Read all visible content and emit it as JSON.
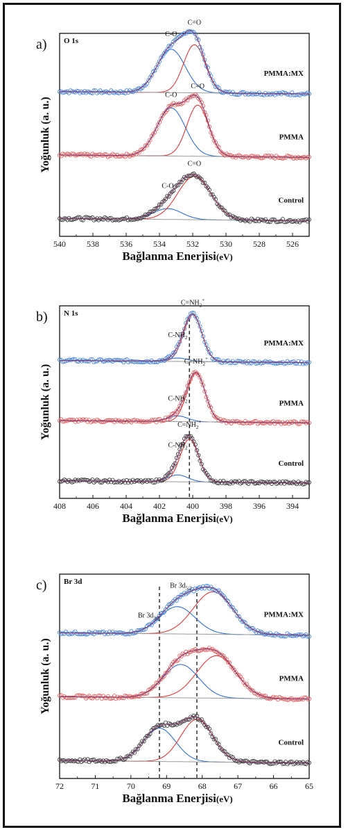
{
  "colors": {
    "blue": "#3f7fd9",
    "red": "#e05a5a",
    "black": "#333333",
    "fit_blue": "#2f6fcf",
    "fit_red": "#d93b3b",
    "envelope": "#9a9a9a"
  },
  "chart_data": [
    {
      "type": "line",
      "panel_label": "a)",
      "corner_label": "O 1s",
      "xlabel_main": "Bağlanma Enerjisi",
      "xlabel_unit": "(eV)",
      "ylabel": "Yoğunluk",
      "ylabel_unit": "(a. u.)",
      "xlim": [
        540,
        525
      ],
      "ticks": [
        "540",
        "538",
        "536",
        "534",
        "532",
        "530",
        "528",
        "526"
      ],
      "tick_values": [
        540,
        538,
        536,
        534,
        532,
        530,
        528,
        526
      ],
      "series": [
        {
          "name": "PMMA:MX",
          "peaks": [
            {
              "center": 533.3,
              "height": 0.72,
              "width": 0.85
            },
            {
              "center": 531.9,
              "height": 0.8,
              "width": 0.65
            }
          ],
          "offset": 2.0
        },
        {
          "name": "PMMA",
          "peaks": [
            {
              "center": 533.3,
              "height": 0.8,
              "width": 0.85
            },
            {
              "center": 531.7,
              "height": 0.85,
              "width": 0.65
            }
          ],
          "offset": 1.0
        },
        {
          "name": "Control",
          "peaks": [
            {
              "center": 533.5,
              "height": 0.18,
              "width": 0.85
            },
            {
              "center": 531.9,
              "height": 0.72,
              "width": 1.0
            }
          ],
          "offset": 0.0
        }
      ],
      "annotations": [
        {
          "series": "PMMA:MX",
          "text": "C-O",
          "x": 533.3
        },
        {
          "series": "PMMA:MX",
          "text": "C=O",
          "x": 531.9
        },
        {
          "series": "PMMA",
          "text": "C-O",
          "x": 533.3
        },
        {
          "series": "PMMA",
          "text": "C=O",
          "x": 531.7
        },
        {
          "series": "Control",
          "text": "C-O",
          "x": 533.5
        },
        {
          "series": "Control",
          "text": "C=O",
          "x": 531.9
        }
      ]
    },
    {
      "type": "line",
      "panel_label": "b)",
      "corner_label": "N 1s",
      "xlabel_main": "Bağlanma Enerjisi",
      "xlabel_unit": "(eV)",
      "ylabel": "Yoğunluk",
      "ylabel_unit": "(a. u.)",
      "xlim": [
        408,
        393
      ],
      "ticks": [
        "408",
        "406",
        "404",
        "402",
        "400",
        "398",
        "396",
        "394"
      ],
      "tick_values": [
        408,
        406,
        404,
        402,
        400,
        398,
        396,
        394
      ],
      "dashed_lines": [
        400.2
      ],
      "series": [
        {
          "name": "PMMA:MX",
          "peaks": [
            {
              "center": 400.9,
              "height": 0.06,
              "width": 0.6
            },
            {
              "center": 400.0,
              "height": 0.82,
              "width": 0.55
            }
          ],
          "offset": 2.0
        },
        {
          "name": "PMMA",
          "peaks": [
            {
              "center": 400.9,
              "height": 0.1,
              "width": 0.6
            },
            {
              "center": 399.8,
              "height": 0.85,
              "width": 0.55
            }
          ],
          "offset": 1.0
        },
        {
          "name": "Control",
          "peaks": [
            {
              "center": 400.9,
              "height": 0.12,
              "width": 0.6
            },
            {
              "center": 400.2,
              "height": 0.75,
              "width": 0.55
            }
          ],
          "offset": 0.0
        }
      ],
      "annotations": [
        {
          "series": "PMMA:MX",
          "text": "C-NH",
          "sub": "2",
          "x": 400.9
        },
        {
          "series": "PMMA:MX",
          "text": "C=NH",
          "sub": "2",
          "sup": "+",
          "x": 400.0
        },
        {
          "series": "PMMA",
          "text": "C-NH",
          "sub": "2",
          "x": 400.9
        },
        {
          "series": "PMMA",
          "text": "C=NH",
          "sub": "2",
          "sup": "+",
          "x": 399.8
        },
        {
          "series": "Control",
          "text": "C-NH",
          "sub": "2",
          "x": 400.9
        },
        {
          "series": "Control",
          "text": "C=NH",
          "sub": "2",
          "sup": "+",
          "x": 400.2
        }
      ]
    },
    {
      "type": "line",
      "panel_label": "c)",
      "corner_label": "Br 3d",
      "xlabel_main": "Bağlanma Enerjisi",
      "xlabel_unit": "(eV)",
      "ylabel": "Yoğunluk",
      "ylabel_unit": "(a. u.)",
      "xlim": [
        72,
        65
      ],
      "ticks": [
        "72",
        "71",
        "70",
        "69",
        "68",
        "67",
        "66",
        "65"
      ],
      "tick_values": [
        72,
        71,
        70,
        69,
        68,
        67,
        66,
        65
      ],
      "dashed_lines": [
        69.2,
        68.15
      ],
      "series": [
        {
          "name": "PMMA:MX",
          "peaks": [
            {
              "center": 68.7,
              "height": 0.45,
              "width": 0.5
            },
            {
              "center": 67.7,
              "height": 0.7,
              "width": 0.55
            }
          ],
          "offset": 2.0
        },
        {
          "name": "PMMA",
          "peaks": [
            {
              "center": 68.6,
              "height": 0.55,
              "width": 0.5
            },
            {
              "center": 67.6,
              "height": 0.7,
              "width": 0.55
            }
          ],
          "offset": 1.0
        },
        {
          "name": "Control",
          "peaks": [
            {
              "center": 69.2,
              "height": 0.55,
              "width": 0.45
            },
            {
              "center": 68.15,
              "height": 0.7,
              "width": 0.45
            }
          ],
          "offset": 0.0
        }
      ],
      "annotations": [
        {
          "series": "PMMA:MX",
          "text": "Br 3d",
          "sub": "3/2",
          "x": 69.5
        },
        {
          "series": "PMMA:MX",
          "text": "Br 3d",
          "sub": "5/2",
          "x": 68.6
        }
      ]
    }
  ]
}
